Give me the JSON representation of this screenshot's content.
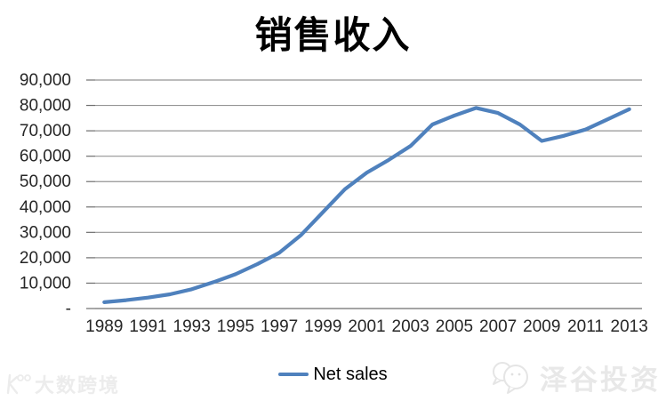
{
  "title": "销售收入",
  "legend": {
    "label": "Net sales"
  },
  "watermarks": {
    "left": {
      "icon": "dashu-kuajing-logo-icon",
      "text": "大数跨境"
    },
    "right": {
      "icon": "wechat-bubbles-icon",
      "text": "泽谷投资"
    }
  },
  "colors": {
    "line": "#4F81BD",
    "gridline": "#959595",
    "axis": "#6e6e6e",
    "tick_label": "#262626",
    "title": "#000000",
    "watermark": "#e8e8e8"
  },
  "chart_data": {
    "type": "line",
    "title": "销售收入",
    "x": [
      1989,
      1990,
      1991,
      1992,
      1993,
      1994,
      1995,
      1996,
      1997,
      1998,
      1999,
      2000,
      2001,
      2002,
      2003,
      2004,
      2005,
      2006,
      2007,
      2008,
      2009,
      2010,
      2011,
      2012,
      2013
    ],
    "series": [
      {
        "name": "Net sales",
        "values": [
          2500,
          3300,
          4300,
          5600,
          7600,
          10400,
          13500,
          17500,
          22000,
          29000,
          38000,
          47000,
          53500,
          58500,
          64000,
          72500,
          76000,
          79000,
          77000,
          72500,
          66000,
          68000,
          70500,
          74500,
          78500
        ]
      }
    ],
    "x_tick_labels": [
      "1989",
      "1991",
      "1993",
      "1995",
      "1997",
      "1999",
      "2001",
      "2003",
      "2005",
      "2007",
      "2009",
      "2011",
      "2013"
    ],
    "y_tick_labels": [
      "-",
      "10,000",
      "20,000",
      "30,000",
      "40,000",
      "50,000",
      "60,000",
      "70,000",
      "80,000",
      "90,000"
    ],
    "ylim": [
      0,
      90000
    ],
    "y_step": 10000,
    "grid": "horizontal",
    "legend_position": "bottom"
  }
}
